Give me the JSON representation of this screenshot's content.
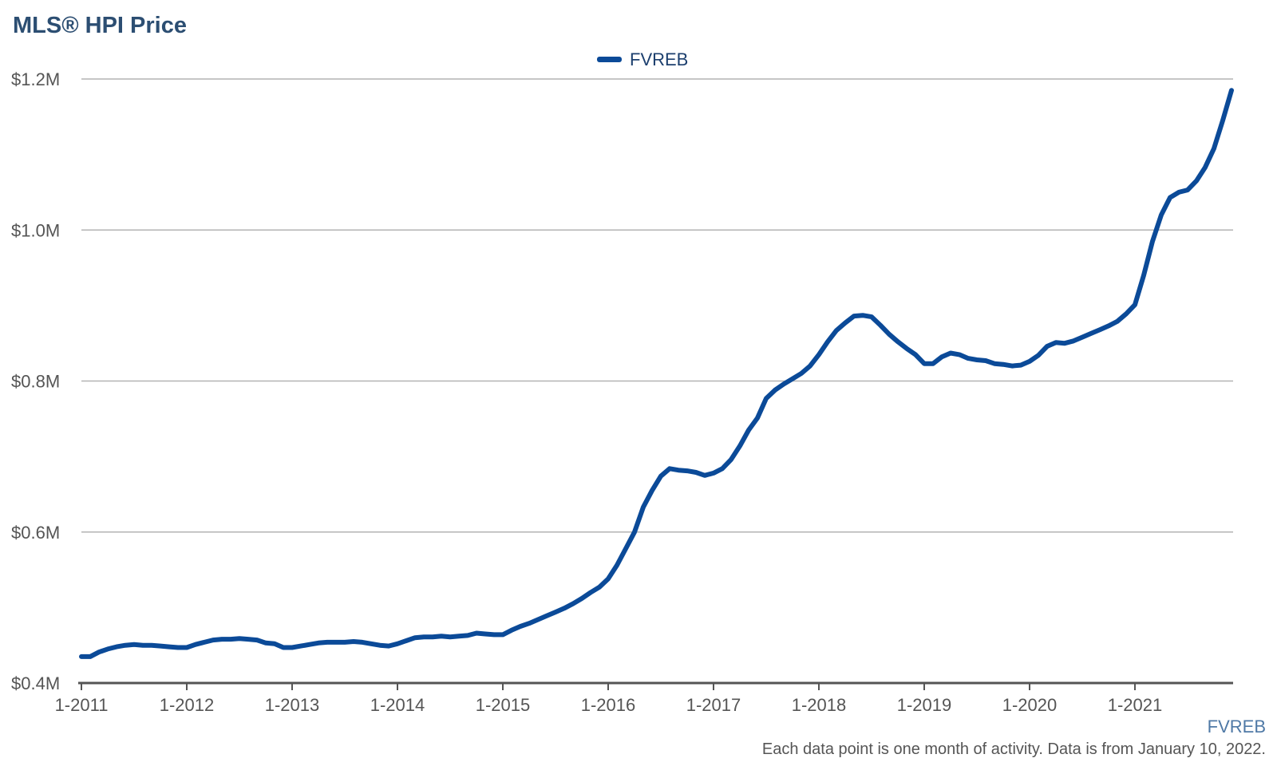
{
  "title": "MLS® HPI Price",
  "source_label": "FVREB",
  "footnote": "Each data point is one month of activity. Data is from January 10, 2022.",
  "colors": {
    "series": "#0b4a98",
    "title": "#2c4e72",
    "grid": "#b3b3b3",
    "axis": "#555555",
    "source": "#4f79a6"
  },
  "chart_data": {
    "type": "line",
    "title": "MLS® HPI Price",
    "xlabel": "",
    "ylabel": "",
    "x_start": "2011-01",
    "x_ticks": [
      "1-2011",
      "1-2012",
      "1-2013",
      "1-2014",
      "1-2015",
      "1-2016",
      "1-2017",
      "1-2018",
      "1-2019",
      "1-2020",
      "1-2021"
    ],
    "y_ticks": [
      "$0.4M",
      "$0.6M",
      "$0.8M",
      "$1.0M",
      "$1.2M"
    ],
    "y_tick_values": [
      400000,
      600000,
      800000,
      1000000,
      1200000
    ],
    "ylim": [
      400000,
      1200000
    ],
    "grid": "horizontal",
    "legend_position": "top-center",
    "series": [
      {
        "name": "FVREB",
        "color": "#0b4a98",
        "values": [
          435000,
          435000,
          441000,
          445000,
          448000,
          450000,
          451000,
          450000,
          450000,
          449000,
          448000,
          447000,
          447000,
          451000,
          454000,
          457000,
          458000,
          458000,
          459000,
          458000,
          457000,
          453000,
          452000,
          447000,
          447000,
          449000,
          451000,
          453000,
          454000,
          454000,
          454000,
          455000,
          454000,
          452000,
          450000,
          449000,
          452000,
          456000,
          460000,
          461000,
          461000,
          462000,
          461000,
          462000,
          463000,
          466000,
          465000,
          464000,
          464000,
          470000,
          475000,
          479000,
          484000,
          489000,
          494000,
          499000,
          505000,
          512000,
          520000,
          527000,
          538000,
          556000,
          578000,
          600000,
          633000,
          655000,
          674000,
          684000,
          682000,
          681000,
          679000,
          675000,
          678000,
          684000,
          696000,
          714000,
          735000,
          751000,
          777000,
          788000,
          796000,
          803000,
          810000,
          820000,
          835000,
          852000,
          867000,
          877000,
          886000,
          887000,
          885000,
          874000,
          862000,
          852000,
          843000,
          835000,
          823000,
          823000,
          832000,
          837000,
          835000,
          830000,
          828000,
          827000,
          823000,
          822000,
          820000,
          821000,
          826000,
          834000,
          846000,
          851000,
          850000,
          853000,
          858000,
          863000,
          868000,
          873000,
          879000,
          889000,
          901000,
          940000,
          985000,
          1020000,
          1043000,
          1050000,
          1053000,
          1065000,
          1083000,
          1108000,
          1145000,
          1185000
        ]
      }
    ]
  }
}
